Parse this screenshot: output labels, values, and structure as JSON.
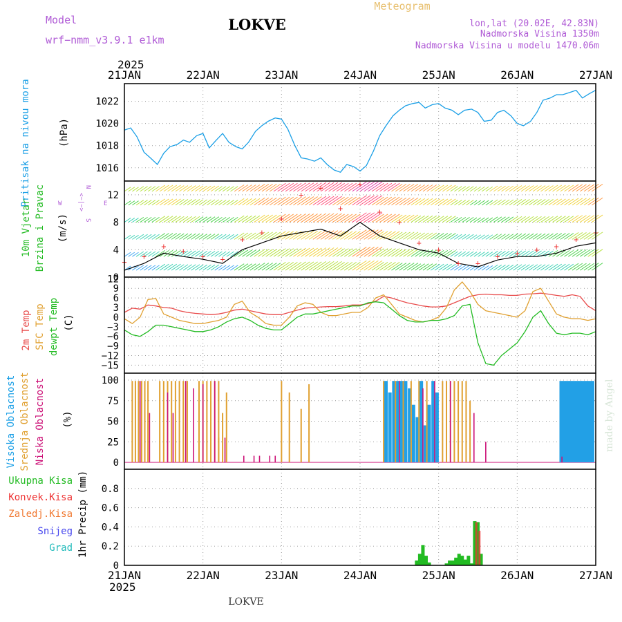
{
  "header": {
    "model_label": "Model",
    "model_name": "wrf−nmm_v3.9.1  e1km",
    "title": "LOKVE",
    "meteogram_label": "Meteogram",
    "lonlat": "lon,lat (20.02E, 42.83N)",
    "elevation": "Nadmorska Visina 1350m",
    "model_elevation": "Nadmorska Visina u modelu 1470.06m",
    "footer_title": "LOKVE",
    "watermark": "made by Angel"
  },
  "time_axis": {
    "year": "2025",
    "ticks": [
      "21JAN",
      "22JAN",
      "23JAN",
      "24JAN",
      "25JAN",
      "26JAN",
      "27JAN"
    ]
  },
  "colors": {
    "pressure": "#1a9fe6",
    "wind_speed": "#000000",
    "gust": "#ee3333",
    "temp2m": "#e84a4a",
    "sfc_temp": "#e0a030",
    "dewpoint": "#22bb22",
    "high_cloud": "#22a0e6",
    "mid_cloud": "#e0a030",
    "low_cloud": "#cc1177",
    "total_precip": "#22bb22",
    "conv_precip": "#ee3333",
    "frozen_precip": "#f07830",
    "snow": "#4444ee",
    "graupel": "#22bbbb"
  },
  "chart_data": [
    {
      "type": "line",
      "panel": "pressure",
      "ylabel_left": "Pritisak na nivou mora",
      "ylabel_unit": "(hPa)",
      "ylim": [
        1014.8,
        1023.6
      ],
      "yticks": [
        "1016",
        "1018",
        "1020",
        "1022"
      ],
      "grid": true,
      "x_days": [
        0,
        0.08,
        0.16,
        0.25,
        0.33,
        0.42,
        0.5,
        0.58,
        0.67,
        0.75,
        0.83,
        0.92,
        1.0,
        1.08,
        1.17,
        1.25,
        1.33,
        1.42,
        1.5,
        1.58,
        1.67,
        1.75,
        1.83,
        1.92,
        2.0,
        2.08,
        2.17,
        2.25,
        2.33,
        2.42,
        2.5,
        2.58,
        2.67,
        2.75,
        2.83,
        2.92,
        3.0,
        3.08,
        3.17,
        3.25,
        3.33,
        3.42,
        3.5,
        3.58,
        3.67,
        3.75,
        3.83,
        3.92,
        4.0,
        4.08,
        4.17,
        4.25,
        4.33,
        4.42,
        4.5,
        4.58,
        4.67,
        4.75,
        4.83,
        4.92,
        5.0,
        5.08,
        5.17,
        5.25,
        5.33,
        5.42,
        5.5,
        5.58,
        5.67,
        5.75,
        5.83,
        5.92,
        6.0
      ],
      "values": [
        1019.4,
        1019.6,
        1018.8,
        1017.4,
        1016.9,
        1016.3,
        1017.3,
        1017.9,
        1018.1,
        1018.5,
        1018.3,
        1018.9,
        1019.1,
        1017.8,
        1018.5,
        1019.1,
        1018.3,
        1017.9,
        1017.7,
        1018.3,
        1019.3,
        1019.8,
        1020.2,
        1020.5,
        1020.4,
        1019.5,
        1018.0,
        1016.9,
        1016.8,
        1016.6,
        1016.9,
        1016.3,
        1015.8,
        1015.6,
        1016.3,
        1016.1,
        1015.7,
        1016.2,
        1017.5,
        1018.9,
        1019.8,
        1020.7,
        1021.2,
        1021.6,
        1021.8,
        1021.9,
        1021.4,
        1021.7,
        1021.8,
        1021.4,
        1021.2,
        1020.8,
        1021.2,
        1021.3,
        1021.0,
        1020.2,
        1020.3,
        1021.0,
        1021.2,
        1020.7,
        1020.0,
        1019.8,
        1020.2,
        1021.0,
        1022.1,
        1022.3,
        1022.6,
        1022.6,
        1022.8,
        1023.0,
        1022.3,
        1022.7,
        1023.0
      ]
    },
    {
      "type": "line",
      "panel": "wind",
      "ylabel_left_1": "10m Vjetar",
      "ylabel_left_2": "Brzina i Pravac",
      "ylabel_unit": "(m/s)",
      "compass": [
        "N",
        "<−|−>",
        "W",
        "E",
        "S"
      ],
      "ylim": [
        0,
        14
      ],
      "yticks": [
        "0",
        "4",
        "8",
        "12"
      ],
      "grid": true,
      "x_days": [
        0,
        0.25,
        0.5,
        0.75,
        1.0,
        1.25,
        1.5,
        1.75,
        2.0,
        2.25,
        2.5,
        2.75,
        3.0,
        3.25,
        3.5,
        3.75,
        4.0,
        4.25,
        4.5,
        4.75,
        5.0,
        5.25,
        5.5,
        5.75,
        6.0
      ],
      "speed": [
        1.0,
        2.0,
        3.5,
        3.0,
        2.6,
        2.0,
        4.0,
        5.0,
        6.0,
        6.5,
        7.0,
        6.0,
        8.0,
        6.0,
        5.0,
        4.0,
        3.5,
        2.0,
        1.5,
        2.5,
        3.0,
        3.0,
        3.5,
        4.5,
        5.0
      ],
      "gust": [
        2.2,
        3.0,
        4.5,
        3.8,
        3.0,
        2.6,
        5.5,
        6.5,
        8.5,
        12.0,
        13.0,
        10.0,
        13.5,
        9.5,
        8.0,
        5.0,
        4.0,
        2.0,
        2.0,
        3.0,
        3.5,
        4.0,
        4.5,
        5.5,
        6.5
      ]
    },
    {
      "type": "line",
      "panel": "temperature",
      "ylabel_left_1": "2m Temp",
      "ylabel_left_2": "SFC Temp",
      "ylabel_left_3": "dewpt Temp",
      "ylabel_unit": "(C)",
      "ylim": [
        -17.5,
        12.5
      ],
      "yticks": [
        "12",
        "9",
        "6",
        "3",
        "0",
        "−3",
        "−6",
        "−9",
        "−12",
        "−15"
      ],
      "grid": true,
      "x_days": [
        0,
        0.1,
        0.2,
        0.3,
        0.4,
        0.5,
        0.6,
        0.7,
        0.8,
        0.9,
        1.0,
        1.1,
        1.2,
        1.3,
        1.4,
        1.5,
        1.6,
        1.7,
        1.8,
        1.9,
        2.0,
        2.1,
        2.2,
        2.3,
        2.4,
        2.5,
        2.6,
        2.7,
        2.8,
        2.9,
        3.0,
        3.1,
        3.2,
        3.3,
        3.4,
        3.5,
        3.6,
        3.7,
        3.8,
        3.9,
        4.0,
        4.1,
        4.2,
        4.3,
        4.4,
        4.5,
        4.6,
        4.7,
        4.8,
        4.9,
        5.0,
        5.1,
        5.2,
        5.3,
        5.4,
        5.5,
        5.6,
        5.7,
        5.8,
        5.9,
        6.0
      ],
      "temp2m": [
        1.5,
        2.8,
        2.5,
        3.8,
        3.5,
        3.0,
        2.8,
        2.0,
        1.5,
        1.2,
        1.0,
        0.8,
        1.0,
        1.5,
        2.2,
        2.5,
        2.0,
        1.5,
        1.0,
        0.8,
        0.8,
        1.5,
        2.2,
        2.8,
        3.0,
        3.2,
        3.3,
        3.3,
        3.5,
        3.8,
        3.8,
        4.2,
        5.0,
        6.5,
        6.0,
        5.2,
        4.5,
        4.0,
        3.5,
        3.2,
        3.2,
        3.5,
        4.5,
        5.5,
        6.5,
        7.0,
        7.2,
        7.0,
        7.0,
        6.8,
        6.8,
        7.2,
        7.3,
        7.5,
        7.2,
        6.8,
        6.5,
        7.0,
        6.5,
        3.5,
        2.0
      ],
      "sfc_temp": [
        -0.5,
        -2.0,
        0.0,
        5.5,
        5.8,
        1.0,
        0.0,
        -1.0,
        -1.5,
        -2.0,
        -2.0,
        -1.5,
        -1.0,
        0.0,
        4.0,
        5.0,
        1.5,
        0.0,
        -2.0,
        -2.5,
        -2.5,
        0.0,
        3.5,
        4.5,
        4.0,
        1.5,
        0.5,
        0.5,
        1.0,
        1.5,
        1.5,
        3.0,
        6.0,
        7.0,
        4.0,
        1.0,
        0.0,
        -1.0,
        -1.5,
        -1.0,
        0.0,
        3.0,
        8.5,
        11.0,
        8.0,
        4.0,
        2.0,
        1.5,
        1.0,
        0.5,
        0.0,
        2.0,
        8.0,
        9.0,
        5.0,
        1.0,
        0.0,
        -0.5,
        -0.5,
        -1.0,
        -0.5
      ],
      "dewpoint": [
        -4.0,
        -5.5,
        -6.0,
        -4.5,
        -2.5,
        -2.5,
        -3.0,
        -3.5,
        -4.0,
        -4.5,
        -4.5,
        -4.0,
        -3.0,
        -1.5,
        -0.5,
        0.0,
        -1.0,
        -2.5,
        -3.5,
        -4.0,
        -4.0,
        -2.0,
        0.0,
        1.0,
        1.0,
        1.5,
        2.0,
        2.5,
        3.0,
        3.5,
        3.5,
        4.5,
        4.8,
        4.5,
        2.5,
        0.5,
        -1.0,
        -1.5,
        -1.5,
        -1.0,
        -1.0,
        -0.5,
        0.5,
        3.5,
        4.0,
        -8.0,
        -14.5,
        -15.0,
        -12.0,
        -10.0,
        -8.0,
        -4.5,
        0.0,
        2.0,
        -2.0,
        -5.0,
        -5.5,
        -5.0,
        -5.0,
        -5.5,
        -4.5
      ]
    },
    {
      "type": "bar",
      "panel": "clouds",
      "ylabel_left_1": "Visoka Oblacnost",
      "ylabel_left_2": "Srednja Oblacnost",
      "ylabel_left_3": "Niska Oblacnost",
      "ylabel_unit": "(%)",
      "ylim": [
        0,
        100
      ],
      "yticks": [
        "0",
        "25",
        "50",
        "75",
        "100"
      ],
      "grid": true,
      "high_x": [
        3.33,
        3.38,
        3.43,
        3.48,
        3.53,
        3.58,
        3.63,
        3.68,
        3.73,
        3.78,
        3.83,
        3.88,
        3.93,
        3.98,
        5.56,
        5.6,
        5.64,
        5.68,
        5.72,
        5.76,
        5.8,
        5.84,
        5.88,
        5.92,
        5.96
      ],
      "high_values": [
        99,
        85,
        99,
        99,
        99,
        99,
        90,
        70,
        55,
        99,
        45,
        70,
        99,
        85,
        99,
        99,
        99,
        99,
        99,
        99,
        99,
        99,
        99,
        99,
        99
      ],
      "mid_x": [
        0.1,
        0.14,
        0.18,
        0.22,
        0.26,
        0.3,
        0.45,
        0.5,
        0.55,
        0.6,
        0.65,
        0.7,
        0.75,
        0.8,
        0.95,
        1.0,
        1.05,
        1.1,
        1.15,
        1.2,
        1.25,
        1.3,
        1.2,
        2.0,
        2.1,
        2.25,
        2.35,
        3.3,
        3.45,
        3.55,
        3.65,
        3.75,
        3.85,
        4.05,
        4.1,
        4.15,
        4.2,
        4.25,
        4.3,
        4.35,
        4.4
      ],
      "mid_values": [
        99,
        99,
        99,
        99,
        99,
        99,
        99,
        99,
        99,
        99,
        99,
        99,
        99,
        99,
        99,
        99,
        99,
        99,
        99,
        99,
        60,
        85,
        30,
        99,
        85,
        65,
        95,
        99,
        99,
        99,
        99,
        99,
        99,
        99,
        99,
        99,
        99,
        99,
        99,
        99,
        75
      ],
      "low_x": [
        0.2,
        0.32,
        0.55,
        0.62,
        0.78,
        0.88,
        1.0,
        1.15,
        1.28,
        1.52,
        1.65,
        1.72,
        1.85,
        1.92,
        3.5,
        3.8,
        3.95,
        4.15,
        4.45,
        4.6,
        5.57
      ],
      "low_values": [
        99,
        60,
        85,
        60,
        99,
        90,
        95,
        99,
        30,
        8,
        8,
        8,
        8,
        8,
        99,
        90,
        99,
        99,
        60,
        25,
        7
      ]
    },
    {
      "type": "bar",
      "panel": "precip",
      "ylabel_left_1": "Ukupna Kisa",
      "ylabel_left_2": "Konvek.Kisa",
      "ylabel_left_3": "Zaledj.Kisa",
      "ylabel_left_4": "Snijeg",
      "ylabel_left_5": "Grad",
      "ylabel_unit": "1hr Precip (mm)",
      "ylim": [
        0,
        1.0
      ],
      "yticks": [
        "0",
        "0.2",
        "0.4",
        "0.6",
        "0.8"
      ],
      "grid": true,
      "total_x": [
        3.72,
        3.76,
        3.8,
        3.84,
        3.88,
        4.1,
        4.14,
        4.18,
        4.22,
        4.26,
        4.3,
        4.34,
        4.38,
        4.42,
        4.46,
        4.5,
        4.54
      ],
      "total_values": [
        0.05,
        0.12,
        0.21,
        0.1,
        0.03,
        0.02,
        0.05,
        0.05,
        0.08,
        0.12,
        0.1,
        0.06,
        0.1,
        0.02,
        0.46,
        0.45,
        0.12
      ],
      "conv_x": [
        4.48,
        4.52
      ],
      "conv_values": [
        0.45,
        0.36
      ]
    }
  ]
}
